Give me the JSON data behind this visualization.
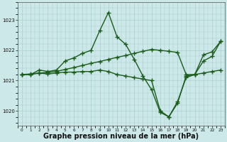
{
  "background_color": "#cce8e8",
  "grid_color": "#aacfcf",
  "line_color": "#1a5c1a",
  "marker": "+",
  "markersize": 4,
  "linewidth": 1.0,
  "markeredgewidth": 1.0,
  "xlabel": "Graphe pression niveau de la mer (hPa)",
  "xlabel_fontsize": 7,
  "xlim": [
    -0.5,
    23.5
  ],
  "ylim": [
    1019.5,
    1023.6
  ],
  "yticks": [
    1020,
    1021,
    1022,
    1023
  ],
  "xticks": [
    0,
    1,
    2,
    3,
    4,
    5,
    6,
    7,
    8,
    9,
    10,
    11,
    12,
    13,
    14,
    15,
    16,
    17,
    18,
    19,
    20,
    21,
    22,
    23
  ],
  "line1_x": [
    0,
    1,
    2,
    3,
    4,
    5,
    6,
    7,
    8,
    9,
    10,
    11,
    12,
    13,
    14,
    15,
    16,
    17,
    18,
    19,
    20,
    21,
    22,
    23
  ],
  "line1_y": [
    1021.2,
    1021.2,
    1021.35,
    1021.3,
    1021.35,
    1021.65,
    1021.75,
    1021.9,
    1022.0,
    1022.65,
    1023.25,
    1022.45,
    1022.2,
    1021.7,
    1021.15,
    1020.7,
    1019.95,
    1019.8,
    1020.3,
    1021.1,
    1021.2,
    1021.85,
    1021.95,
    1022.3
  ],
  "line2_x": [
    0,
    1,
    2,
    3,
    4,
    5,
    6,
    7,
    8,
    9,
    10,
    11,
    12,
    13,
    14,
    15,
    16,
    17,
    18,
    19,
    20,
    21,
    22,
    23
  ],
  "line2_y": [
    1021.2,
    1021.22,
    1021.25,
    1021.27,
    1021.3,
    1021.37,
    1021.43,
    1021.5,
    1021.57,
    1021.63,
    1021.7,
    1021.77,
    1021.83,
    1021.9,
    1021.97,
    1022.03,
    1022.0,
    1021.97,
    1021.93,
    1021.2,
    1021.2,
    1021.65,
    1021.8,
    1022.3
  ],
  "line3_x": [
    0,
    1,
    2,
    3,
    4,
    5,
    6,
    7,
    8,
    9,
    10,
    11,
    12,
    13,
    14,
    15,
    16,
    17,
    18,
    19,
    20,
    21,
    22,
    23
  ],
  "line3_y": [
    1021.2,
    1021.2,
    1021.25,
    1021.22,
    1021.25,
    1021.28,
    1021.28,
    1021.3,
    1021.3,
    1021.35,
    1021.3,
    1021.2,
    1021.15,
    1021.1,
    1021.05,
    1021.0,
    1020.0,
    1019.8,
    1020.25,
    1021.15,
    1021.2,
    1021.25,
    1021.3,
    1021.35
  ]
}
